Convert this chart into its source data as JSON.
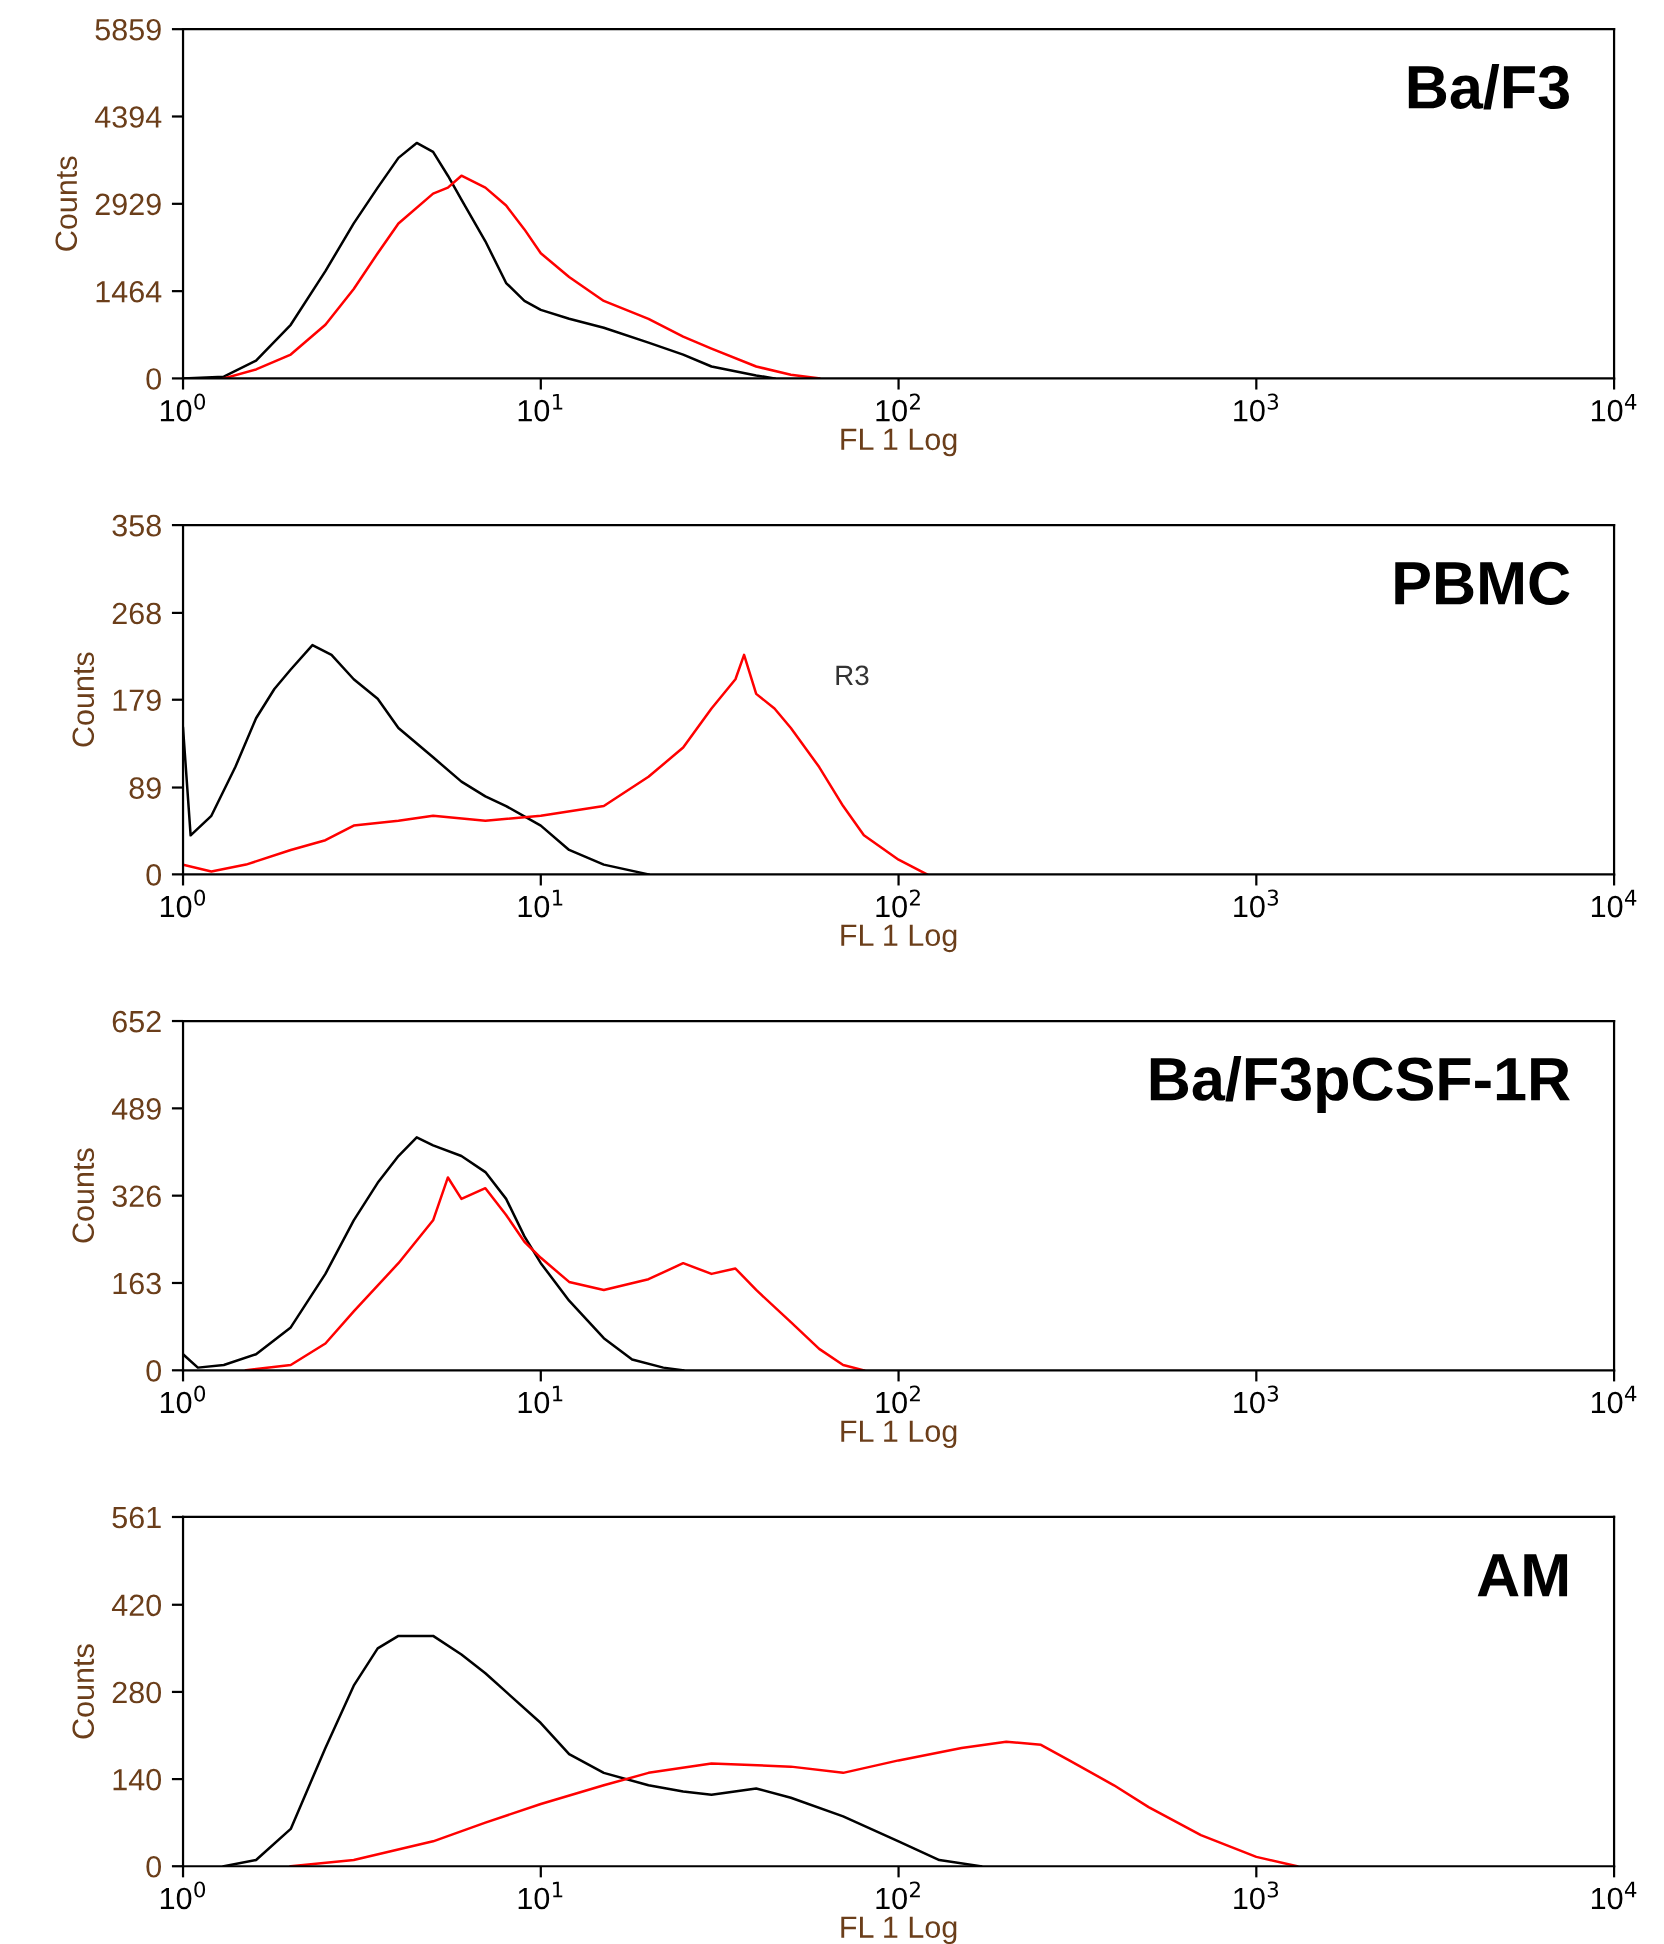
{
  "chart_data": [
    {
      "type": "line",
      "title": "Ba/F3",
      "xlabel": "FL 1 Log",
      "ylabel": "Counts",
      "log": "x",
      "grid": false,
      "legend": false,
      "xlim": [
        1,
        10000
      ],
      "ylim": [
        0,
        5859
      ],
      "xticks": [
        {
          "value": 1,
          "label": "10$^{0}$"
        },
        {
          "value": 10,
          "label": "10$^{1}$"
        },
        {
          "value": 100,
          "label": "10$^{2}$"
        },
        {
          "value": 1000,
          "label": "10$^{3}$"
        },
        {
          "value": 10000,
          "label": "10$^{4}$"
        }
      ],
      "yticks": [
        0,
        1464,
        2929,
        4394,
        5859
      ],
      "series": [
        {
          "color": "#000000",
          "x": [
            1,
            1.3,
            1.6,
            2,
            2.5,
            3,
            3.5,
            4,
            4.5,
            5,
            5.5,
            6,
            7,
            8,
            9,
            10,
            12,
            15,
            20,
            25,
            30,
            40,
            45
          ],
          "values": [
            0,
            30,
            300,
            900,
            1800,
            2600,
            3200,
            3700,
            3950,
            3800,
            3400,
            3000,
            2300,
            1600,
            1300,
            1150,
            1000,
            850,
            600,
            400,
            200,
            50,
            0
          ]
        },
        {
          "color": "#ff0000",
          "x": [
            1.3,
            1.6,
            2,
            2.5,
            3,
            3.5,
            4,
            5,
            5.5,
            6,
            7,
            8,
            9,
            10,
            12,
            15,
            20,
            25,
            30,
            40,
            50,
            60
          ],
          "values": [
            0,
            150,
            400,
            900,
            1500,
            2100,
            2600,
            3100,
            3200,
            3400,
            3200,
            2900,
            2500,
            2100,
            1700,
            1300,
            1000,
            700,
            500,
            200,
            60,
            0
          ]
        }
      ]
    },
    {
      "type": "line",
      "title": "PBMC",
      "xlabel": "FL 1 Log",
      "ylabel": "Counts",
      "log": "x",
      "grid": false,
      "legend": false,
      "xlim": [
        1,
        10000
      ],
      "ylim": [
        0,
        358
      ],
      "xticks": [
        {
          "value": 1,
          "label": "10$^{0}$"
        },
        {
          "value": 10,
          "label": "10$^{1}$"
        },
        {
          "value": 100,
          "label": "10$^{2}$"
        },
        {
          "value": 1000,
          "label": "10$^{3}$"
        },
        {
          "value": 10000,
          "label": "10$^{4}$"
        }
      ],
      "yticks": [
        0,
        89,
        179,
        268,
        358
      ],
      "annotations": [
        "R3"
      ],
      "series": [
        {
          "color": "#000000",
          "x": [
            1.0,
            1.05,
            1.2,
            1.4,
            1.6,
            1.8,
            2,
            2.3,
            2.6,
            3,
            3.5,
            4,
            5,
            6,
            7,
            8,
            10,
            12,
            15,
            20
          ],
          "values": [
            150,
            40,
            60,
            110,
            160,
            190,
            210,
            235,
            225,
            200,
            180,
            150,
            120,
            95,
            80,
            70,
            50,
            25,
            10,
            0
          ]
        },
        {
          "color": "#ff0000",
          "x": [
            1,
            1.2,
            1.5,
            2,
            2.5,
            3,
            4,
            5,
            7,
            10,
            15,
            20,
            25,
            30,
            35,
            37,
            40,
            45,
            50,
            60,
            70,
            80,
            100,
            120
          ],
          "values": [
            10,
            3,
            10,
            25,
            35,
            50,
            55,
            60,
            55,
            60,
            70,
            100,
            130,
            170,
            200,
            225,
            185,
            170,
            150,
            110,
            70,
            40,
            15,
            0
          ]
        }
      ]
    },
    {
      "type": "line",
      "title": "Ba/F3pCSF-1R",
      "xlabel": "FL 1 Log",
      "ylabel": "Counts",
      "log": "x",
      "grid": false,
      "legend": false,
      "xlim": [
        1,
        10000
      ],
      "ylim": [
        0,
        652
      ],
      "xticks": [
        {
          "value": 1,
          "label": "10$^{0}$"
        },
        {
          "value": 10,
          "label": "10$^{1}$"
        },
        {
          "value": 100,
          "label": "10$^{2}$"
        },
        {
          "value": 1000,
          "label": "10$^{3}$"
        },
        {
          "value": 10000,
          "label": "10$^{4}$"
        }
      ],
      "yticks": [
        0,
        163,
        326,
        489,
        652
      ],
      "series": [
        {
          "color": "#000000",
          "x": [
            1,
            1.1,
            1.3,
            1.6,
            2,
            2.5,
            3,
            3.5,
            4,
            4.5,
            5,
            6,
            7,
            8,
            9,
            10,
            12,
            15,
            18,
            22,
            25
          ],
          "values": [
            30,
            5,
            10,
            30,
            80,
            180,
            280,
            350,
            400,
            435,
            420,
            400,
            370,
            320,
            250,
            200,
            130,
            60,
            20,
            5,
            0
          ]
        },
        {
          "color": "#ff0000",
          "x": [
            1.5,
            2,
            2.5,
            3,
            4,
            5,
            5.5,
            6,
            7,
            8,
            9,
            10,
            12,
            15,
            20,
            25,
            30,
            35,
            40,
            50,
            60,
            70,
            80
          ],
          "values": [
            0,
            10,
            50,
            110,
            200,
            280,
            360,
            320,
            340,
            290,
            240,
            210,
            165,
            150,
            170,
            200,
            180,
            190,
            150,
            90,
            40,
            10,
            0
          ]
        }
      ]
    },
    {
      "type": "line",
      "title": "AM",
      "xlabel": "FL 1 Log",
      "ylabel": "Counts",
      "log": "x",
      "grid": false,
      "legend": false,
      "xlim": [
        1,
        10000
      ],
      "ylim": [
        0,
        561
      ],
      "xticks": [
        {
          "value": 1,
          "label": "10$^{0}$"
        },
        {
          "value": 10,
          "label": "10$^{1}$"
        },
        {
          "value": 100,
          "label": "10$^{2}$"
        },
        {
          "value": 1000,
          "label": "10$^{3}$"
        },
        {
          "value": 10000,
          "label": "10$^{4}$"
        }
      ],
      "yticks": [
        0,
        140,
        280,
        420,
        561
      ],
      "series": [
        {
          "color": "#000000",
          "x": [
            1.3,
            1.6,
            2,
            2.5,
            3,
            3.5,
            4,
            5,
            6,
            7,
            8,
            10,
            12,
            15,
            20,
            25,
            30,
            40,
            50,
            70,
            100,
            130,
            170
          ],
          "values": [
            0,
            10,
            60,
            190,
            290,
            350,
            370,
            370,
            340,
            310,
            280,
            230,
            180,
            150,
            130,
            120,
            115,
            125,
            110,
            80,
            40,
            10,
            0
          ]
        },
        {
          "color": "#ff0000",
          "x": [
            2,
            3,
            5,
            7,
            10,
            15,
            20,
            30,
            50,
            70,
            100,
            150,
            200,
            250,
            300,
            400,
            500,
            700,
            1000,
            1300
          ],
          "values": [
            0,
            10,
            40,
            70,
            100,
            130,
            150,
            165,
            160,
            150,
            170,
            190,
            200,
            195,
            170,
            130,
            95,
            50,
            15,
            0
          ]
        }
      ]
    }
  ]
}
